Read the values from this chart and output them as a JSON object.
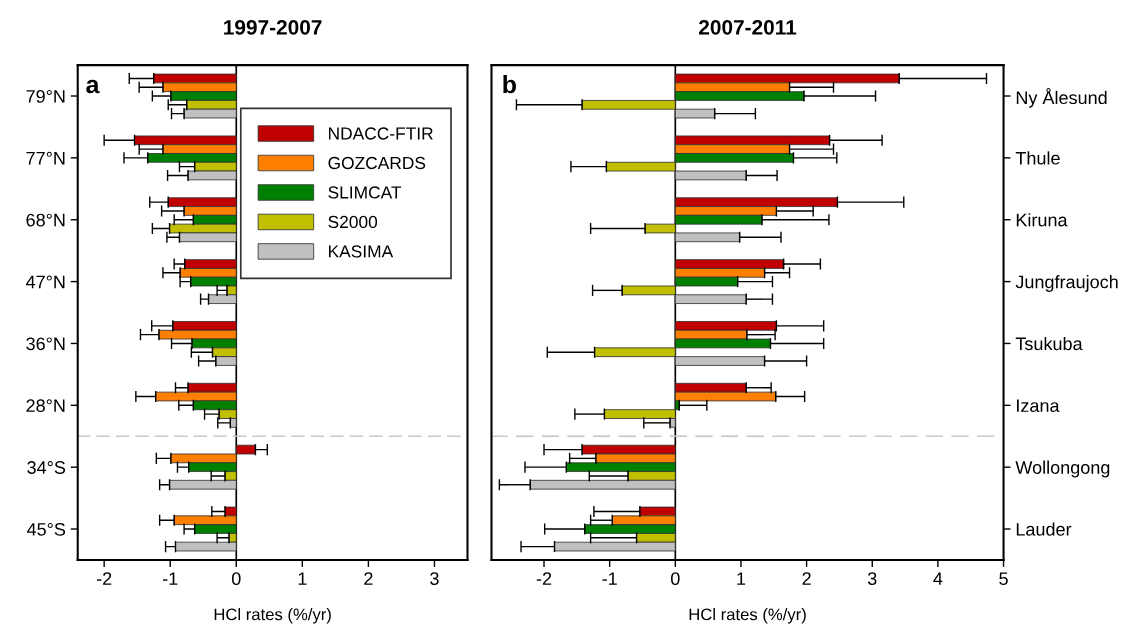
{
  "chart_data": [
    {
      "type": "bar",
      "orientation": "horizontal",
      "title": "1997-2007",
      "xlabel": "HCl rates (%/yr)",
      "annotations": [
        "a"
      ],
      "categories": [
        "79°N",
        "77°N",
        "68°N",
        "47°N",
        "36°N",
        "28°N",
        "34°S",
        "45°S"
      ],
      "xlim": [
        -2.4,
        3.5
      ],
      "xticks": [
        -2,
        -1,
        0,
        1,
        2,
        3
      ],
      "grid": false,
      "legend": "top right",
      "ref_lines": [
        {
          "axis": "x",
          "value": 0,
          "color": "#000000",
          "line_style": "solid"
        }
      ],
      "series": [
        {
          "name": "NDACC-FTIR",
          "color": "#c00000",
          "values": [
            -1.25,
            -1.54,
            -1.03,
            -0.78,
            -0.96,
            -0.73,
            0.29,
            -0.17
          ],
          "errors": [
            [
              -1.62,
              -1.25
            ],
            [
              -2.0,
              -1.54
            ],
            [
              -1.31,
              -1.03
            ],
            [
              -0.94,
              -0.78
            ],
            [
              -1.28,
              -0.96
            ],
            [
              -0.92,
              -0.73
            ],
            [
              0.29,
              0.47
            ],
            [
              -0.37,
              -0.17
            ]
          ]
        },
        {
          "name": "GOZCARDS",
          "color": "#ff8000",
          "values": [
            -1.11,
            -1.11,
            -0.79,
            -0.85,
            -1.17,
            -1.22,
            -0.99,
            -0.94
          ],
          "errors": [
            [
              -1.47,
              -1.11
            ],
            [
              -1.47,
              -1.11
            ],
            [
              -1.13,
              -0.79
            ],
            [
              -1.11,
              -0.85
            ],
            [
              -1.45,
              -1.17
            ],
            [
              -1.52,
              -1.22
            ],
            [
              -1.21,
              -0.99
            ],
            [
              -1.16,
              -0.94
            ]
          ]
        },
        {
          "name": "SLIMCAT",
          "color": "#008000",
          "values": [
            -0.99,
            -1.34,
            -0.65,
            -0.69,
            -0.67,
            -0.65,
            -0.72,
            -0.63
          ],
          "errors": [
            [
              -1.27,
              -0.99
            ],
            [
              -1.7,
              -1.34
            ],
            [
              -0.94,
              -0.65
            ],
            [
              -0.85,
              -0.69
            ],
            [
              -0.98,
              -0.67
            ],
            [
              -0.87,
              -0.65
            ],
            [
              -0.89,
              -0.72
            ],
            [
              -0.79,
              -0.63
            ]
          ]
        },
        {
          "name": "S2000",
          "color": "#c0c000",
          "values": [
            -0.75,
            -0.63,
            -1.01,
            -0.14,
            -0.36,
            -0.26,
            -0.17,
            -0.11
          ],
          "errors": [
            [
              -1.03,
              -0.75
            ],
            [
              -0.86,
              -0.63
            ],
            [
              -1.27,
              -1.01
            ],
            [
              -0.29,
              -0.14
            ],
            [
              -0.68,
              -0.36
            ],
            [
              -0.48,
              -0.26
            ],
            [
              -0.38,
              -0.17
            ],
            [
              -0.29,
              -0.11
            ]
          ]
        },
        {
          "name": "KASIMA",
          "color": "#c0c0c0",
          "values": [
            -0.79,
            -0.73,
            -0.86,
            -0.42,
            -0.31,
            -0.09,
            -1.01,
            -0.92
          ],
          "errors": [
            [
              -0.98,
              -0.79
            ],
            [
              -1.04,
              -0.73
            ],
            [
              -1.05,
              -0.86
            ],
            [
              -0.54,
              -0.42
            ],
            [
              -0.57,
              -0.31
            ],
            [
              -0.28,
              -0.09
            ],
            [
              -1.16,
              -1.01
            ],
            [
              -1.07,
              -0.92
            ]
          ]
        }
      ]
    },
    {
      "type": "bar",
      "orientation": "horizontal",
      "title": "2007-2011",
      "xlabel": "HCl rates (%/yr)",
      "annotations": [
        "b"
      ],
      "categories": [
        "Ny Ålesund",
        "Thule",
        "Kiruna",
        "Jungfraujoch",
        "Tsukuba",
        "Izana",
        "Wollongong",
        "Lauder"
      ],
      "xlim": [
        -2.8,
        5
      ],
      "xticks": [
        -2,
        -1,
        0,
        1,
        2,
        3,
        4,
        5
      ],
      "grid": false,
      "ref_lines": [
        {
          "axis": "x",
          "value": 0,
          "color": "#000000",
          "line_style": "solid"
        }
      ],
      "series": [
        {
          "color": "#c00000",
          "values": [
            3.41,
            2.35,
            2.47,
            1.65,
            1.54,
            1.08,
            -1.42,
            -0.54
          ],
          "errors": [
            [
              3.41,
              4.74
            ],
            [
              2.35,
              3.15
            ],
            [
              2.47,
              3.48
            ],
            [
              1.65,
              2.21
            ],
            [
              1.54,
              2.26
            ],
            [
              1.08,
              1.46
            ],
            [
              -2.0,
              -1.42
            ],
            [
              -1.24,
              -0.54
            ]
          ]
        },
        {
          "color": "#ff8000",
          "values": [
            1.74,
            1.74,
            1.54,
            1.36,
            1.09,
            1.53,
            -1.21,
            -0.96
          ],
          "errors": [
            [
              1.74,
              2.41
            ],
            [
              1.74,
              2.41
            ],
            [
              1.54,
              2.1
            ],
            [
              1.36,
              1.74
            ],
            [
              1.09,
              1.52
            ],
            [
              1.53,
              1.97
            ],
            [
              -1.61,
              -1.21
            ],
            [
              -1.29,
              -0.96
            ]
          ]
        },
        {
          "color": "#008000",
          "values": [
            1.96,
            1.8,
            1.32,
            0.95,
            1.45,
            0.06,
            -1.66,
            -1.38
          ],
          "errors": [
            [
              1.96,
              3.05
            ],
            [
              1.8,
              2.46
            ],
            [
              1.32,
              2.34
            ],
            [
              0.95,
              1.48
            ],
            [
              1.45,
              2.26
            ],
            [
              0.06,
              0.48
            ],
            [
              -2.29,
              -1.66
            ],
            [
              -1.99,
              -1.38
            ]
          ]
        },
        {
          "color": "#c0c000",
          "values": [
            -1.42,
            -1.05,
            -0.46,
            -0.81,
            -1.23,
            -1.08,
            -0.72,
            -0.59
          ],
          "errors": [
            [
              -2.42,
              -1.42
            ],
            [
              -1.59,
              -1.05
            ],
            [
              -1.29,
              -0.46
            ],
            [
              -1.26,
              -0.81
            ],
            [
              -1.95,
              -1.23
            ],
            [
              -1.53,
              -1.08
            ],
            [
              -1.31,
              -0.72
            ],
            [
              -1.29,
              -0.59
            ]
          ]
        },
        {
          "color": "#c0c0c0",
          "values": [
            0.6,
            1.08,
            0.98,
            1.08,
            1.36,
            -0.08,
            -2.21,
            -1.84
          ],
          "errors": [
            [
              0.6,
              1.22
            ],
            [
              1.08,
              1.55
            ],
            [
              0.98,
              1.61
            ],
            [
              1.08,
              1.48
            ],
            [
              1.36,
              2.0
            ],
            [
              -0.48,
              -0.08
            ],
            [
              -2.68,
              -2.21
            ],
            [
              -2.35,
              -1.84
            ]
          ]
        }
      ]
    }
  ]
}
